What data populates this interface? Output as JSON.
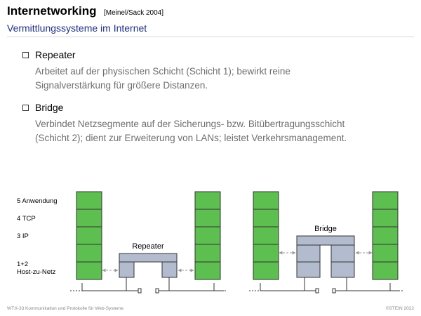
{
  "header": {
    "title": "Internetworking",
    "citation": "[Meinel/Sack 2004]",
    "subtitle": "Vermittlungssysteme im Internet"
  },
  "items": [
    {
      "heading": "Repeater",
      "lines": [
        "Arbeitet auf der physischen Schicht (Schicht 1); bewirkt reine",
        "Signalverstärkung für größere Distanzen."
      ]
    },
    {
      "heading": "Bridge",
      "lines": [
        "Verbindet Netzsegmente auf der Sicherungs- bzw. Bitübertragungsschicht",
        "(Schicht 2); dient zur Erweiterung von LANs; leistet Verkehrsmanagement."
      ]
    }
  ],
  "diagram": {
    "layer_labels": [
      "5 Anwendung",
      "4 TCP",
      "3 IP",
      "1+2",
      "Host-zu-Netz"
    ],
    "repeater_label": "Repeater",
    "bridge_label": "Bridge",
    "colors": {
      "stack_fill": "#5cbf4f",
      "device_fill": "#b3bbcf",
      "stroke": "#333333",
      "arrow": "#999999"
    }
  },
  "footer": {
    "left": "WT:II-33   Kommunikation und Protokolle für Web-Systeme",
    "right": "©STEIN 2022"
  }
}
